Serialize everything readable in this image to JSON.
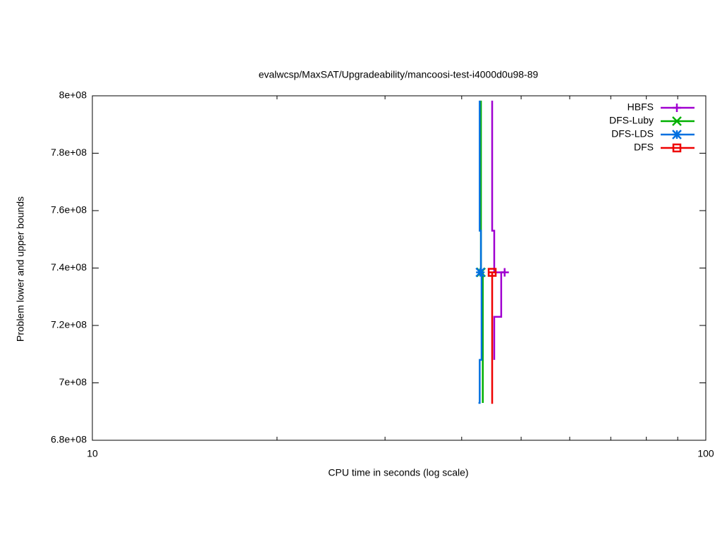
{
  "chart_data": {
    "type": "line",
    "title": "evalwcsp/MaxSAT/Upgradeability/mancoosi-test-i4000d0u98-89",
    "x_label": "CPU time in seconds (log scale)",
    "y_label": "Problem lower and upper bounds",
    "xscale": "log",
    "xlim": [
      10,
      100
    ],
    "xticks": [
      10,
      100
    ],
    "minor_xticks": [
      20,
      30,
      40,
      50,
      60,
      70,
      80,
      90
    ],
    "ylim": [
      680000000,
      800000000
    ],
    "yticks": [
      {
        "value": 680000000,
        "label": "6.8e+08"
      },
      {
        "value": 700000000,
        "label": "7e+08"
      },
      {
        "value": 720000000,
        "label": "7.2e+08"
      },
      {
        "value": 740000000,
        "label": "7.4e+08"
      },
      {
        "value": 760000000,
        "label": "7.6e+08"
      },
      {
        "value": 780000000,
        "label": "7.8e+08"
      },
      {
        "value": 800000000,
        "label": "8e+08"
      }
    ],
    "legend": "top-right",
    "series": [
      {
        "name": "HBFS",
        "color": "#a000d0",
        "marker": "plus",
        "upper": {
          "x": [
            44.85,
            44.85,
            45.2,
            45.2,
            47.0
          ],
          "values": [
            798300000,
            753000000,
            753000000,
            738500000,
            738500000
          ]
        },
        "lower": {
          "x": [
            45.2,
            45.2,
            46.4,
            46.4,
            47.0
          ],
          "values": [
            708000000,
            723000000,
            723000000,
            738500000,
            738500000
          ]
        },
        "point": {
          "x": 47.0,
          "value": 738500000
        }
      },
      {
        "name": "DFS-Luby",
        "color": "#00b000",
        "marker": "cross",
        "upper": {
          "x": [
            43.0,
            43.0
          ],
          "values": [
            798300000,
            738500000
          ]
        },
        "lower": {
          "x": [
            43.3,
            43.3
          ],
          "values": [
            693000000,
            738500000
          ]
        },
        "point": {
          "x": 43.0,
          "value": 738500000
        }
      },
      {
        "name": "DFS-LDS",
        "color": "#0070e0",
        "marker": "star",
        "upper": {
          "x": [
            42.8,
            42.8,
            43.0,
            43.0
          ],
          "values": [
            798300000,
            753000000,
            753000000,
            738500000
          ]
        },
        "lower": {
          "x": [
            42.6,
            42.8,
            42.8,
            43.1,
            43.1
          ],
          "values": [
            693000000,
            693000000,
            708000000,
            708000000,
            738500000
          ]
        },
        "point": {
          "x": 42.9,
          "value": 738500000
        }
      },
      {
        "name": "DFS",
        "color": "#ee0000",
        "marker": "square",
        "upper": {
          "x": [
            44.3,
            45.4
          ],
          "values": [
            738500000,
            738500000
          ]
        },
        "lower": {
          "x": [
            44.7,
            44.85,
            44.85
          ],
          "values": [
            693000000,
            693000000,
            738500000
          ]
        },
        "point": {
          "x": 44.85,
          "value": 738500000
        }
      }
    ]
  }
}
